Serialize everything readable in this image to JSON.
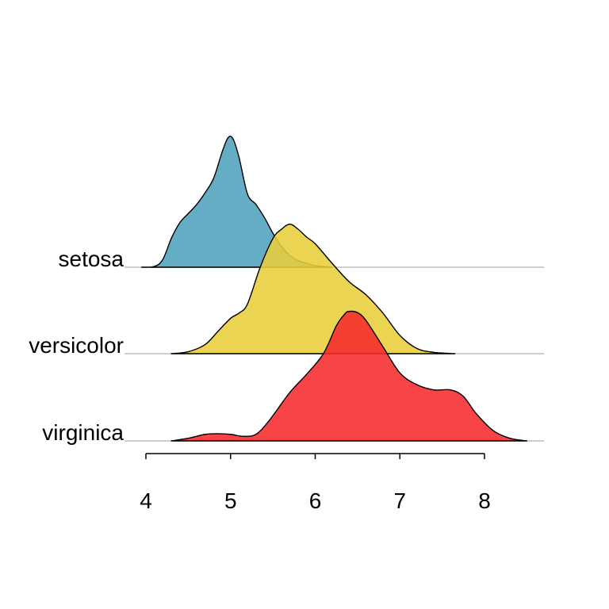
{
  "chart_data": {
    "type": "ridgeline",
    "xlim": [
      4,
      8
    ],
    "x_ticks": [
      "4",
      "5",
      "6",
      "7",
      "8"
    ],
    "x_tick_values": [
      4,
      5,
      6,
      7,
      8
    ],
    "grid": false,
    "legend": "none",
    "categories": [
      "setosa",
      "versicolor",
      "virginica"
    ],
    "series": [
      {
        "name": "setosa",
        "color": "#4EA2BD",
        "density": [
          [
            3.95,
            0.0
          ],
          [
            4.1,
            0.006
          ],
          [
            4.2,
            0.06
          ],
          [
            4.3,
            0.22
          ],
          [
            4.4,
            0.34
          ],
          [
            4.5,
            0.41
          ],
          [
            4.6,
            0.48
          ],
          [
            4.7,
            0.57
          ],
          [
            4.8,
            0.68
          ],
          [
            4.9,
            0.88
          ],
          [
            4.97,
            0.99
          ],
          [
            5.03,
            0.98
          ],
          [
            5.1,
            0.84
          ],
          [
            5.2,
            0.56
          ],
          [
            5.3,
            0.48
          ],
          [
            5.4,
            0.38
          ],
          [
            5.5,
            0.26
          ],
          [
            5.6,
            0.16
          ],
          [
            5.7,
            0.09
          ],
          [
            5.8,
            0.05
          ],
          [
            5.9,
            0.03
          ],
          [
            6.0,
            0.012
          ],
          [
            6.2,
            0.0
          ]
        ]
      },
      {
        "name": "versicolor",
        "color": "#E9CE3B",
        "density": [
          [
            4.3,
            0.0
          ],
          [
            4.5,
            0.015
          ],
          [
            4.7,
            0.07
          ],
          [
            4.85,
            0.17
          ],
          [
            5.0,
            0.27
          ],
          [
            5.1,
            0.31
          ],
          [
            5.2,
            0.38
          ],
          [
            5.35,
            0.66
          ],
          [
            5.5,
            0.88
          ],
          [
            5.6,
            0.95
          ],
          [
            5.7,
            0.99
          ],
          [
            5.8,
            0.95
          ],
          [
            5.9,
            0.89
          ],
          [
            6.0,
            0.84
          ],
          [
            6.2,
            0.69
          ],
          [
            6.4,
            0.55
          ],
          [
            6.6,
            0.45
          ],
          [
            6.8,
            0.31
          ],
          [
            7.0,
            0.14
          ],
          [
            7.2,
            0.04
          ],
          [
            7.4,
            0.01
          ],
          [
            7.65,
            0.0
          ]
        ]
      },
      {
        "name": "virginica",
        "color": "#F62A2C",
        "density": [
          [
            4.3,
            0.0
          ],
          [
            4.5,
            0.02
          ],
          [
            4.7,
            0.05
          ],
          [
            4.85,
            0.055
          ],
          [
            5.0,
            0.05
          ],
          [
            5.15,
            0.035
          ],
          [
            5.3,
            0.05
          ],
          [
            5.45,
            0.15
          ],
          [
            5.7,
            0.37
          ],
          [
            5.9,
            0.51
          ],
          [
            6.1,
            0.67
          ],
          [
            6.25,
            0.88
          ],
          [
            6.35,
            0.97
          ],
          [
            6.4,
            0.99
          ],
          [
            6.5,
            0.98
          ],
          [
            6.6,
            0.92
          ],
          [
            6.8,
            0.72
          ],
          [
            7.0,
            0.52
          ],
          [
            7.2,
            0.43
          ],
          [
            7.4,
            0.39
          ],
          [
            7.6,
            0.39
          ],
          [
            7.75,
            0.34
          ],
          [
            7.9,
            0.21
          ],
          [
            8.1,
            0.08
          ],
          [
            8.3,
            0.02
          ],
          [
            8.5,
            0.0
          ]
        ]
      }
    ]
  }
}
